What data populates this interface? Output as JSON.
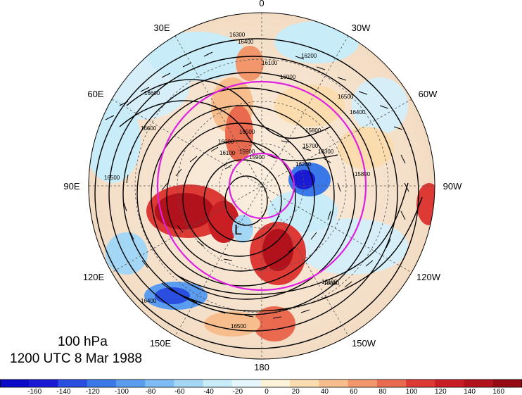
{
  "map": {
    "level": "100 hPa",
    "time": "1200 UTC 8 Mar 1988",
    "longitude_labels": [
      "0",
      "30W",
      "60W",
      "90W",
      "120W",
      "150W",
      "180",
      "150E",
      "120E",
      "90E",
      "60E",
      "30E"
    ],
    "contour_labels": [
      "16300",
      "16400",
      "16200",
      "16100",
      "16000",
      "16500",
      "16600",
      "15900",
      "15800",
      "15700",
      "16200",
      "16300",
      "16400",
      "16500",
      "16600",
      "16600",
      "16500",
      "16400",
      "16000",
      "16100",
      "15900",
      "15800",
      "16500",
      "16100"
    ],
    "highlight_circle_color": "#e020e0",
    "contour_color": "#000000",
    "low_marker": "L"
  },
  "colorbar": {
    "ticks": [
      "-160",
      "-140",
      "-120",
      "-100",
      "-80",
      "-60",
      "-40",
      "-20",
      "0",
      "20",
      "40",
      "60",
      "80",
      "100",
      "120",
      "140",
      "160"
    ],
    "colors": [
      "#1a1ad6",
      "#2a4fe0",
      "#3a78ea",
      "#5a9cf0",
      "#7dbcf4",
      "#a4d6f6",
      "#c8ecf8",
      "#e6f7fb",
      "#fdf3d8",
      "#fbdcae",
      "#f7bd8c",
      "#f2966c",
      "#ea6a50",
      "#dd3a36",
      "#c81e24",
      "#b1121c",
      "#960a14"
    ]
  }
}
